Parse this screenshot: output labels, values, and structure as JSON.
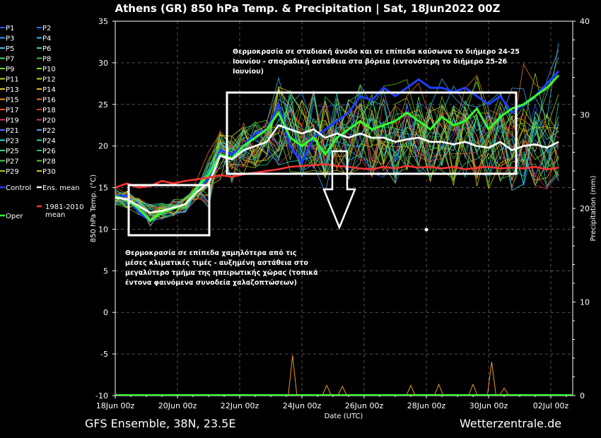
{
  "chart_data": {
    "type": "line",
    "title": "Athens  (GR)  850 hPa Temp. & Precipitation | Sat, 18Jun2022 00Z",
    "xlabel": "Date (UTC)",
    "ylabel": "850 hPa Temp. (°C)",
    "y2label": "Precipitation (mm)",
    "x_ticks": [
      "18Jun 00z",
      "20Jun 00z",
      "22Jun 00z",
      "24Jun 00z",
      "26Jun 00z",
      "28Jun 00z",
      "30Jun 00z",
      "02Jul 00z"
    ],
    "x_unit": "days since 18Jun 00z",
    "xlim": [
      0,
      14.5
    ],
    "ylim": [
      -10,
      35
    ],
    "y_ticks": [
      -10,
      -5,
      0,
      5,
      10,
      15,
      20,
      25,
      30,
      35
    ],
    "y2lim": [
      0,
      40
    ],
    "y2_ticks": [
      0,
      10,
      20,
      30,
      40
    ],
    "grid": true,
    "legend": [
      {
        "name": "P1",
        "color": "#3355ff"
      },
      {
        "name": "P2",
        "color": "#2277ff"
      },
      {
        "name": "P3",
        "color": "#3399ff"
      },
      {
        "name": "P4",
        "color": "#33bbff"
      },
      {
        "name": "P5",
        "color": "#33ccdd"
      },
      {
        "name": "P6",
        "color": "#33ddaa"
      },
      {
        "name": "P7",
        "color": "#33dd77"
      },
      {
        "name": "P8",
        "color": "#33cc44"
      },
      {
        "name": "P9",
        "color": "#66dd33"
      },
      {
        "name": "P10",
        "color": "#88dd22"
      },
      {
        "name": "P11",
        "color": "#aadd22"
      },
      {
        "name": "P12",
        "color": "#ccdd22"
      },
      {
        "name": "P13",
        "color": "#ddcc22"
      },
      {
        "name": "P14",
        "color": "#eebb22"
      },
      {
        "name": "P15",
        "color": "#ee9922"
      },
      {
        "name": "P16",
        "color": "#ee7722"
      },
      {
        "name": "P17",
        "color": "#ee5522"
      },
      {
        "name": "P18",
        "color": "#ee3333"
      },
      {
        "name": "P19",
        "color": "#dd3355"
      },
      {
        "name": "P20",
        "color": "#cc3377"
      },
      {
        "name": "P21",
        "color": "#4466ff"
      },
      {
        "name": "P22",
        "color": "#44aaff"
      },
      {
        "name": "P23",
        "color": "#22dddd"
      },
      {
        "name": "P24",
        "color": "#22ddbb"
      },
      {
        "name": "P25",
        "color": "#22dd88"
      },
      {
        "name": "P26",
        "color": "#22cc66"
      },
      {
        "name": "P27",
        "color": "#44cc44"
      },
      {
        "name": "P28",
        "color": "#66cc22"
      },
      {
        "name": "P29",
        "color": "#aacc22"
      },
      {
        "name": "P30",
        "color": "#ddcc11"
      },
      {
        "name": "Control",
        "color": "#1f3dff"
      },
      {
        "name": "Ens. mean",
        "color": "#ffffff"
      },
      {
        "name": "Oper",
        "color": "#33ff33"
      },
      {
        "name": "1981-2010 mean",
        "color": "#ff3333"
      }
    ],
    "series": [
      {
        "name": "Control",
        "color": "#1f3dff",
        "values": [
          14,
          14,
          12,
          11,
          12,
          12.5,
          13,
          15,
          16,
          19.5,
          19,
          20,
          21.5,
          22,
          25,
          20,
          18,
          21,
          22,
          23,
          24,
          26,
          25.5,
          27,
          26,
          27,
          28,
          27,
          27,
          26.5,
          27,
          26,
          25,
          26,
          24,
          25,
          26,
          27.5,
          29
        ]
      },
      {
        "name": "Oper",
        "color": "#33ff33",
        "values": [
          14,
          13.5,
          12.5,
          11,
          12,
          12.5,
          13,
          15,
          16.5,
          19,
          18.5,
          20,
          21,
          22,
          24,
          21,
          20,
          21,
          19,
          21,
          22,
          23,
          22,
          22.5,
          23,
          24,
          23,
          22,
          23.5,
          22.5,
          23,
          24.5,
          22,
          23.5,
          24.5,
          25,
          26,
          27,
          28.5
        ]
      },
      {
        "name": "Ens. mean",
        "color": "#ffffff",
        "values": [
          13.8,
          13.6,
          12.8,
          12,
          12.2,
          12.6,
          13,
          14.5,
          15.5,
          18.8,
          18.4,
          19.5,
          20,
          20.5,
          22.5,
          22,
          21.5,
          22,
          21,
          21.5,
          21,
          21.5,
          21,
          21,
          20.5,
          20.8,
          21,
          20.5,
          20.5,
          20.2,
          20.5,
          20,
          19.8,
          20.5,
          19.5,
          20,
          20.2,
          19.8,
          20.5
        ]
      },
      {
        "name": "1981-2010 mean",
        "color": "#ff3333",
        "values": [
          15,
          15.5,
          15,
          15.2,
          15.8,
          15.5,
          15.8,
          16,
          16.2,
          16.5,
          16.3,
          16.6,
          16.8,
          17,
          17.2,
          17.5,
          17.6,
          17.7,
          17.8,
          17.6,
          17.5,
          17.3,
          17.2,
          17.5,
          17.3,
          17.6,
          17.4,
          17.5,
          17.3,
          17.5,
          17.2,
          17.4,
          17.5,
          17.3,
          17.4,
          17.3,
          17.5,
          17.2,
          17.4
        ]
      }
    ],
    "precip_spikes": [
      {
        "x": 5.7,
        "mm": 4.3
      },
      {
        "x": 6.8,
        "mm": 1.1
      },
      {
        "x": 7.3,
        "mm": 1.0
      },
      {
        "x": 9.5,
        "mm": 1.1
      },
      {
        "x": 10.4,
        "mm": 1.2
      },
      {
        "x": 11.5,
        "mm": 1.2
      },
      {
        "x": 12.1,
        "mm": 3.6
      },
      {
        "x": 12.5,
        "mm": 0.8
      }
    ]
  },
  "annotations": {
    "upper_line1": "Θερμοκρασία σε σταδιακή άνοδο και σε επίπεδα καύσωνα το διήμερο 24-25",
    "upper_line2": "Ιουνίου - σποραδική αστάθεια στα βόρεια (εντονότερη το διήμερο 25-26",
    "upper_line3": "Ιουνίου)",
    "lower_line1": "Θερμοκρασία σε επίπεδα χαμηλότερα από τις",
    "lower_line2": "μέσες κλιματικές τιμές - αυξημένη αστάθεια στο",
    "lower_line3": "μεγαλύτερο τμήμα της ηπειρωτικής χώρας (τοπικά",
    "lower_line4": "έντονα φαινόμενα συνοδεία χαλαζοπτώσεων)"
  },
  "footer": {
    "left": "GFS Ensemble, 38N, 23.5E",
    "right": "Wetterzentrale.de"
  }
}
